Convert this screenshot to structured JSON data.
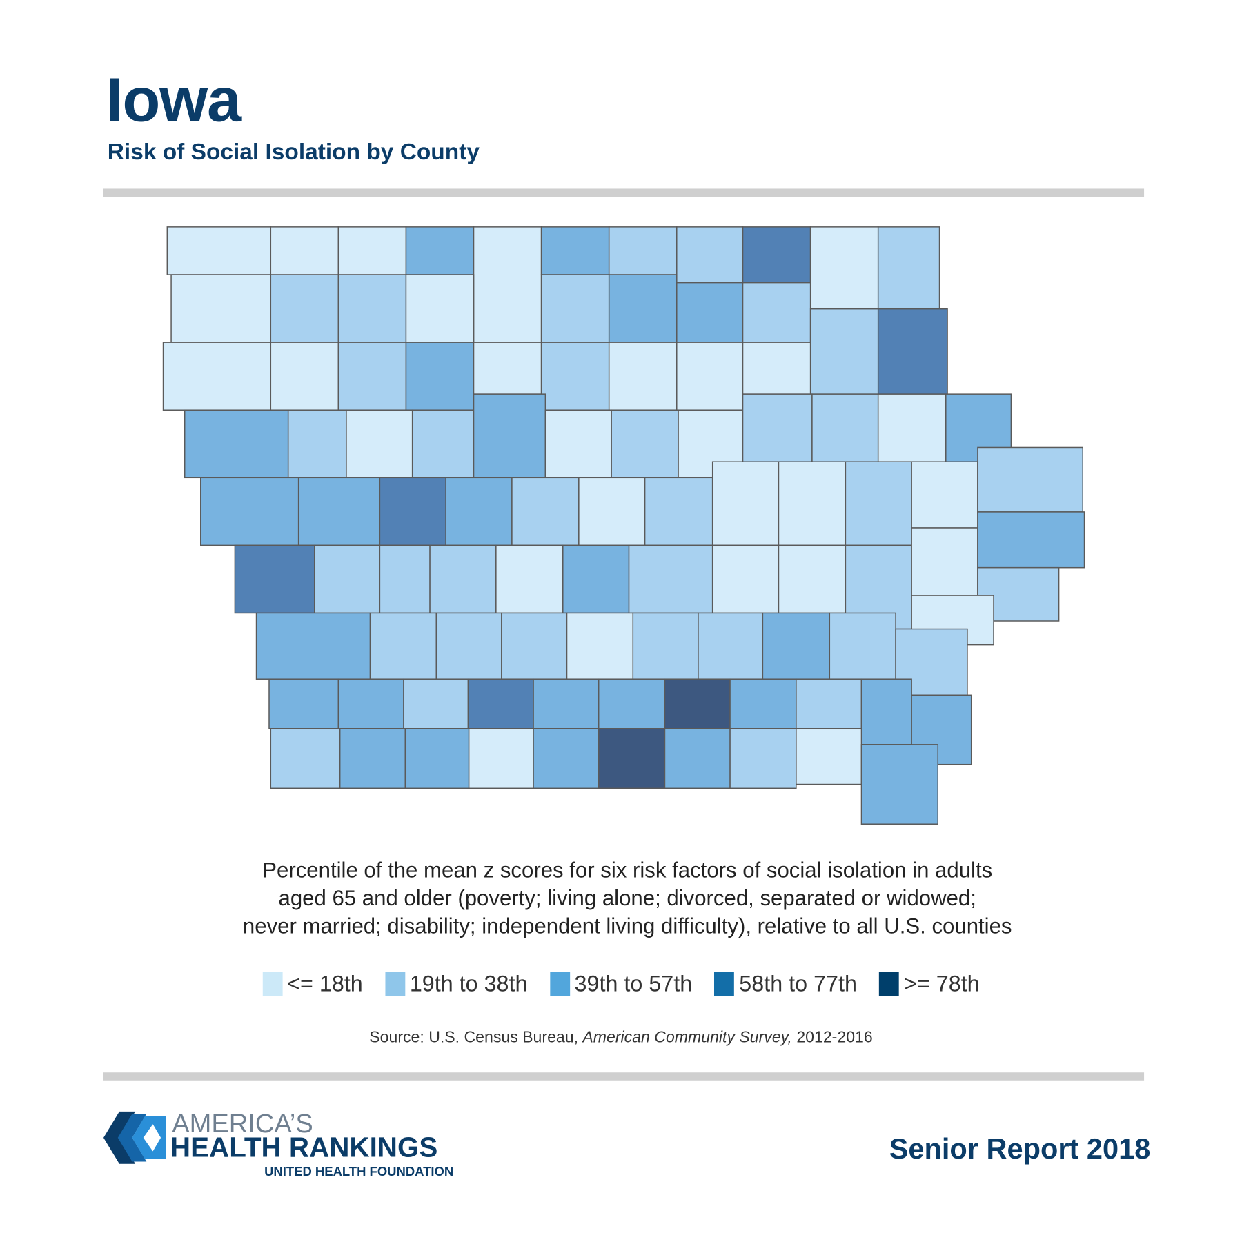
{
  "header": {
    "title": "Iowa",
    "subtitle": "Risk of Social Isolation by County"
  },
  "chart_data": {
    "type": "choropleth",
    "title": "Iowa",
    "subtitle": "Risk of Social Isolation by County",
    "description": "Percentile of the mean z scores for six risk factors of social isolation in adults aged 65 and older (poverty; living alone; divorced, separated or widowed; never married; disability; independent living difficulty), relative to all U.S. counties",
    "legend": [
      {
        "label": "<= 18th",
        "color": "#cce9f8"
      },
      {
        "label": "19th to 38th",
        "color": "#8fc6ea"
      },
      {
        "label": "39th to 57th",
        "color": "#52a6dc"
      },
      {
        "label": "58th to 77th",
        "color": "#136ea8"
      },
      {
        "label": ">= 78th",
        "color": "#003f6b"
      }
    ],
    "map_colors": [
      "#d5ecfa",
      "#a8d1f0",
      "#78b3e0",
      "#5281b5",
      "#3d5880"
    ],
    "county_categories": [
      0,
      0,
      0,
      2,
      0,
      2,
      1,
      1,
      3,
      0,
      1,
      0,
      1,
      1,
      0,
      1,
      2,
      2,
      1,
      1,
      3,
      0,
      0,
      1,
      2,
      0,
      1,
      0,
      0,
      0,
      2,
      1,
      0,
      1,
      2,
      0,
      1,
      0,
      1,
      1,
      0,
      2,
      2,
      2,
      3,
      2,
      1,
      0,
      1,
      0,
      0,
      1,
      0,
      1,
      3,
      1,
      1,
      1,
      0,
      2,
      1,
      0,
      0,
      1,
      0,
      2,
      1,
      2,
      1,
      1,
      1,
      0,
      1,
      1,
      2,
      1,
      0,
      1,
      2,
      2,
      1,
      3,
      2,
      2,
      4,
      2,
      1,
      2,
      2,
      1,
      2,
      2,
      0,
      2,
      4,
      2,
      1,
      0,
      2
    ],
    "source": "Source: U.S. Census Bureau, ",
    "source_italic": "American Community Survey,",
    "source_years": " 2012-2016"
  },
  "description_lines": [
    "Percentile of the mean z scores for six risk factors of social isolation in adults",
    "aged 65 and older (poverty; living alone; divorced, separated or widowed;",
    "never married; disability; independent living difficulty), relative to all U.S. counties"
  ],
  "footer": {
    "logo_line1": "AMERICA’S",
    "logo_line2": "HEALTH RANKINGS",
    "logo_line3": "UNITED HEALTH FOUNDATION",
    "report": "Senior Report 2018"
  }
}
